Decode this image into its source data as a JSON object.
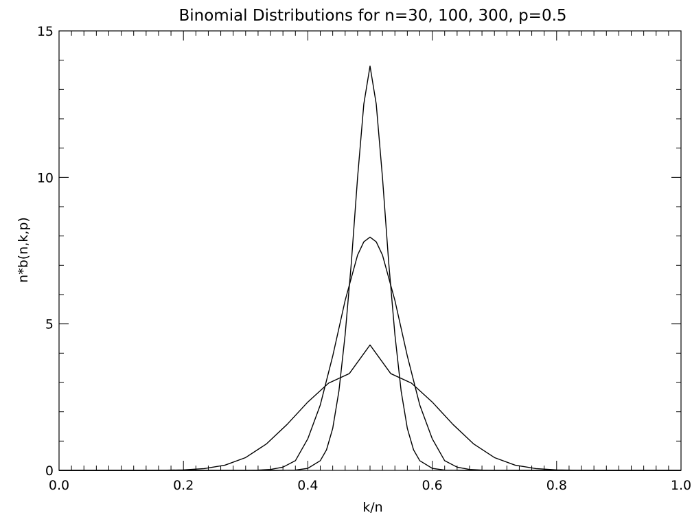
{
  "chart_data": {
    "type": "line",
    "title": "Binomial Distributions for n=30, 100, 300, p=0.5",
    "xlabel": "k/n",
    "ylabel": "n*b(n,k,p)",
    "xlim": [
      0.0,
      1.0
    ],
    "ylim": [
      0,
      15
    ],
    "x_ticks": [
      0.0,
      0.2,
      0.4,
      0.6,
      0.8,
      1.0
    ],
    "x_tick_labels": [
      "0.0",
      "0.2",
      "0.4",
      "0.6",
      "0.8",
      "1.0"
    ],
    "x_minor_step": 0.02,
    "y_ticks": [
      0,
      5,
      10,
      15
    ],
    "y_tick_labels": [
      "0",
      "5",
      "10",
      "15"
    ],
    "y_minor_step": 1,
    "grid": false,
    "line_color": "#000000",
    "series": [
      {
        "n": 30,
        "x": [
          0.0,
          0.0333,
          0.0667,
          0.1,
          0.1333,
          0.1667,
          0.2,
          0.2333,
          0.2667,
          0.3,
          0.3333,
          0.3667,
          0.4,
          0.4333,
          0.4667,
          0.5,
          0.5333,
          0.5667,
          0.6,
          0.6333,
          0.6667,
          0.7,
          0.7333,
          0.7667,
          0.8,
          0.8333,
          0.8667,
          0.9,
          0.9333,
          0.9667,
          1.0
        ],
        "values": [
          0.0,
          0.0,
          0.0,
          0.0,
          0.0,
          0.004,
          0.017,
          0.061,
          0.178,
          0.437,
          0.9,
          1.569,
          2.333,
          2.976,
          3.303,
          4.28,
          3.303,
          2.976,
          2.333,
          1.569,
          0.9,
          0.437,
          0.178,
          0.061,
          0.017,
          0.004,
          0.0,
          0.0,
          0.0,
          0.0,
          0.0
        ]
      },
      {
        "n": 100,
        "x": [
          0.0,
          0.2,
          0.25,
          0.3,
          0.32,
          0.34,
          0.36,
          0.38,
          0.4,
          0.42,
          0.44,
          0.46,
          0.48,
          0.49,
          0.5,
          0.51,
          0.52,
          0.54,
          0.56,
          0.58,
          0.6,
          0.62,
          0.64,
          0.66,
          0.68,
          0.7,
          0.75,
          0.8,
          1.0
        ],
        "values": [
          0.0,
          0.0,
          0.0,
          0.002,
          0.009,
          0.03,
          0.11,
          0.33,
          1.08,
          2.23,
          3.9,
          5.8,
          7.35,
          7.8,
          7.96,
          7.8,
          7.35,
          5.8,
          3.9,
          2.23,
          1.08,
          0.33,
          0.11,
          0.03,
          0.009,
          0.002,
          0.0,
          0.0,
          0.0
        ]
      },
      {
        "n": 300,
        "x": [
          0.0,
          0.35,
          0.38,
          0.4,
          0.42,
          0.43,
          0.44,
          0.45,
          0.46,
          0.47,
          0.48,
          0.49,
          0.5,
          0.51,
          0.52,
          0.53,
          0.54,
          0.55,
          0.56,
          0.57,
          0.58,
          0.6,
          0.62,
          0.65,
          1.0
        ],
        "values": [
          0.0,
          0.0,
          0.01,
          0.07,
          0.33,
          0.7,
          1.43,
          2.71,
          4.63,
          7.1,
          10.0,
          12.5,
          13.8,
          12.5,
          10.0,
          7.1,
          4.63,
          2.71,
          1.43,
          0.7,
          0.33,
          0.07,
          0.01,
          0.0,
          0.0
        ]
      }
    ]
  }
}
